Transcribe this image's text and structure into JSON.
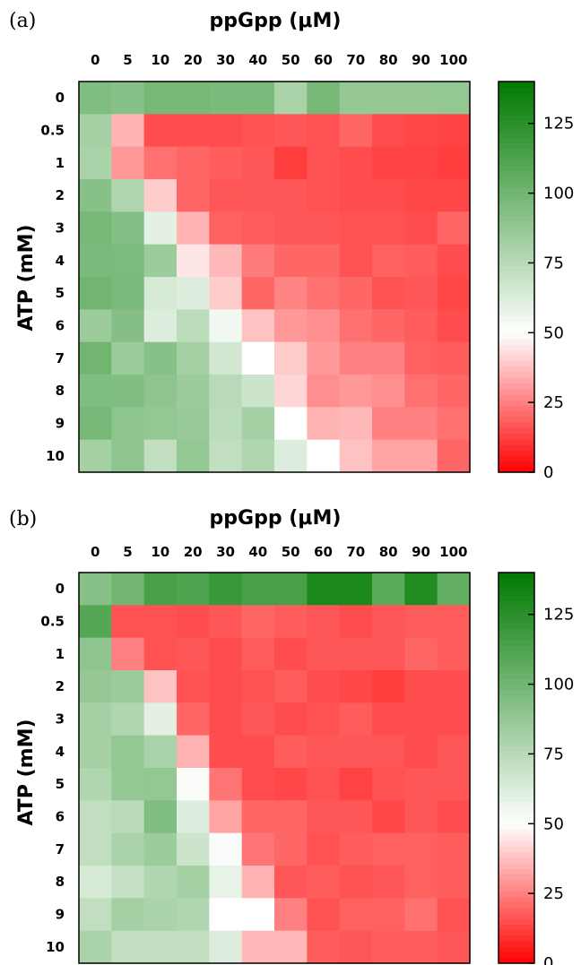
{
  "chart_data": [
    {
      "type": "heatmap",
      "panel_label": "(a)",
      "xlabel": "ppGpp (μM)",
      "ylabel": "ATP (mM)",
      "x": [
        "0",
        "5",
        "10",
        "20",
        "30",
        "40",
        "50",
        "60",
        "70",
        "80",
        "90",
        "100"
      ],
      "y": [
        "0",
        "0.5",
        "1",
        "2",
        "3",
        "4",
        "5",
        "6",
        "7",
        "8",
        "9",
        "10"
      ],
      "z": [
        [
          95,
          92,
          98,
          98,
          97,
          97,
          80,
          98,
          87,
          87,
          87,
          88
        ],
        [
          82,
          35,
          15,
          15,
          15,
          16,
          17,
          16,
          20,
          15,
          14,
          13
        ],
        [
          80,
          30,
          22,
          20,
          18,
          17,
          12,
          16,
          15,
          13,
          13,
          12
        ],
        [
          92,
          78,
          40,
          20,
          17,
          17,
          17,
          16,
          15,
          15,
          14,
          14
        ],
        [
          98,
          93,
          60,
          35,
          19,
          18,
          17,
          17,
          16,
          16,
          15,
          20
        ],
        [
          97,
          96,
          85,
          45,
          36,
          24,
          20,
          20,
          16,
          19,
          18,
          15
        ],
        [
          100,
          97,
          65,
          62,
          40,
          20,
          26,
          22,
          20,
          16,
          17,
          14
        ],
        [
          85,
          93,
          62,
          74,
          55,
          38,
          30,
          28,
          22,
          20,
          18,
          15
        ],
        [
          100,
          85,
          92,
          82,
          66,
          50,
          40,
          30,
          25,
          25,
          19,
          18
        ],
        [
          95,
          94,
          90,
          85,
          75,
          68,
          42,
          28,
          30,
          28,
          22,
          20
        ],
        [
          98,
          90,
          88,
          86,
          74,
          82,
          50,
          35,
          36,
          25,
          25,
          22
        ],
        [
          82,
          90,
          72,
          88,
          72,
          78,
          62,
          50,
          38,
          32,
          32,
          20
        ]
      ],
      "colorbar": {
        "ticks": [
          0,
          25,
          50,
          75,
          100,
          125
        ],
        "range": [
          0,
          140
        ],
        "position": "right"
      },
      "colorscale": {
        "low": "#ff0000",
        "mid": "#ffffff",
        "high": "#007a00"
      }
    },
    {
      "type": "heatmap",
      "panel_label": "(b)",
      "xlabel": "ppGpp (μM)",
      "ylabel": "ATP (mM)",
      "x": [
        "0",
        "5",
        "10",
        "20",
        "30",
        "40",
        "50",
        "60",
        "70",
        "80",
        "90",
        "100"
      ],
      "y": [
        "0",
        "0.5",
        "1",
        "2",
        "3",
        "4",
        "5",
        "6",
        "7",
        "8",
        "9",
        "10"
      ],
      "z": [
        [
          92,
          100,
          115,
          112,
          120,
          115,
          115,
          130,
          130,
          108,
          128,
          105
        ],
        [
          110,
          16,
          16,
          15,
          17,
          20,
          18,
          17,
          15,
          17,
          18,
          18
        ],
        [
          90,
          25,
          16,
          17,
          15,
          18,
          15,
          17,
          17,
          17,
          20,
          18
        ],
        [
          87,
          85,
          38,
          16,
          15,
          16,
          18,
          15,
          14,
          12,
          15,
          15
        ],
        [
          82,
          78,
          60,
          20,
          15,
          17,
          15,
          16,
          18,
          15,
          15,
          15
        ],
        [
          82,
          88,
          80,
          35,
          15,
          15,
          18,
          17,
          17,
          17,
          15,
          17
        ],
        [
          78,
          88,
          88,
          52,
          23,
          15,
          14,
          16,
          13,
          16,
          17,
          17
        ],
        [
          72,
          75,
          95,
          62,
          32,
          20,
          20,
          17,
          17,
          14,
          17,
          15
        ],
        [
          72,
          80,
          85,
          68,
          52,
          23,
          20,
          16,
          18,
          19,
          19,
          18
        ],
        [
          65,
          70,
          78,
          82,
          58,
          35,
          17,
          18,
          16,
          17,
          19,
          18
        ],
        [
          72,
          82,
          80,
          78,
          50,
          50,
          25,
          16,
          19,
          19,
          22,
          16
        ],
        [
          80,
          72,
          72,
          72,
          62,
          36,
          36,
          18,
          17,
          18,
          18,
          17
        ]
      ],
      "colorbar": {
        "ticks": [
          0,
          25,
          50,
          75,
          100,
          125
        ],
        "range": [
          0,
          140
        ],
        "position": "right"
      },
      "colorscale": {
        "low": "#ff0000",
        "mid": "#ffffff",
        "high": "#007a00"
      }
    }
  ]
}
